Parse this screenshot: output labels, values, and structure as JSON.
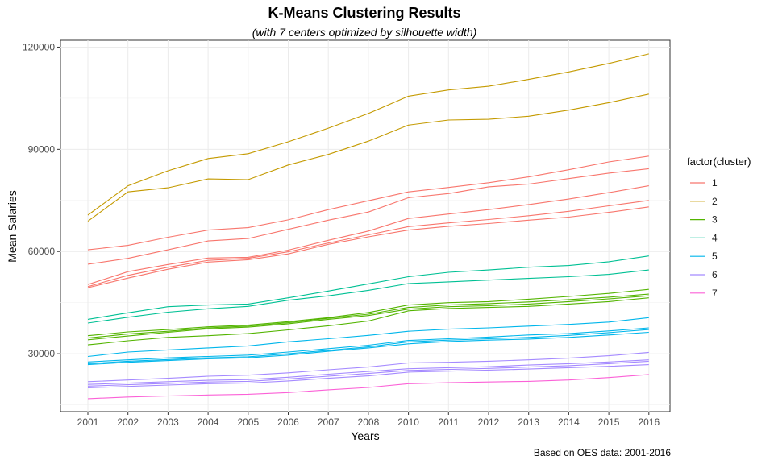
{
  "chart_data": {
    "type": "line",
    "title": "K-Means Clustering Results",
    "subtitle": "(with 7 centers optimized by silhouette width)",
    "xlabel": "Years",
    "ylabel": "Mean Salaries",
    "caption": "Based on OES data: 2001-2016",
    "x": [
      2001,
      2002,
      2003,
      2004,
      2005,
      2006,
      2007,
      2008,
      2010,
      2011,
      2012,
      2013,
      2014,
      2015,
      2016
    ],
    "x_ticks": [
      "2001",
      "2002",
      "2003",
      "2004",
      "2005",
      "2006",
      "2007",
      "2008",
      "2010",
      "2011",
      "2012",
      "2013",
      "2014",
      "2015",
      "2016"
    ],
    "y_ticks": [
      30000,
      60000,
      90000,
      120000
    ],
    "y_tick_labels": [
      "30000",
      "60000",
      "90000",
      "120000"
    ],
    "ylim": [
      13000,
      122000
    ],
    "grid": true,
    "legend": {
      "title": "factor(cluster)",
      "position": "right",
      "entries": [
        {
          "label": "1",
          "color": "#F8766D"
        },
        {
          "label": "2",
          "color": "#C49A00"
        },
        {
          "label": "3",
          "color": "#53B400"
        },
        {
          "label": "4",
          "color": "#00C094"
        },
        {
          "label": "5",
          "color": "#00B6EB"
        },
        {
          "label": "6",
          "color": "#A58AFF"
        },
        {
          "label": "7",
          "color": "#FB61D7"
        }
      ]
    },
    "series": [
      {
        "cluster": "1",
        "values": [
          60500,
          61800,
          64200,
          66300,
          67000,
          69300,
          72300,
          74900,
          77500,
          78800,
          80200,
          81900,
          84000,
          86300,
          88000
        ]
      },
      {
        "cluster": "1",
        "values": [
          56300,
          58000,
          60500,
          63100,
          63800,
          66500,
          69200,
          71600,
          75800,
          77000,
          79000,
          79800,
          81400,
          83000,
          84300
        ]
      },
      {
        "cluster": "1",
        "values": [
          50300,
          54100,
          56200,
          58100,
          58300,
          60400,
          63300,
          66000,
          69700,
          71000,
          72300,
          73800,
          75400,
          77300,
          79300
        ]
      },
      {
        "cluster": "1",
        "values": [
          49700,
          53000,
          55400,
          57400,
          58000,
          59900,
          62500,
          64900,
          67300,
          68400,
          69400,
          70500,
          71800,
          73400,
          75000
        ]
      },
      {
        "cluster": "1",
        "values": [
          49400,
          52200,
          54800,
          56900,
          57600,
          59300,
          62100,
          64300,
          66300,
          67400,
          68200,
          69200,
          70100,
          71500,
          73100
        ]
      },
      {
        "cluster": "2",
        "values": [
          70700,
          79300,
          83700,
          87300,
          88700,
          92200,
          96200,
          100500,
          105600,
          107400,
          108500,
          110500,
          112700,
          115200,
          118000
        ]
      },
      {
        "cluster": "2",
        "values": [
          68900,
          77500,
          78700,
          81300,
          81100,
          85400,
          88500,
          92400,
          97100,
          98600,
          98800,
          99700,
          101500,
          103700,
          106200
        ]
      },
      {
        "cluster": "3",
        "values": [
          35300,
          36400,
          37100,
          37900,
          38400,
          39400,
          40600,
          42100,
          44300,
          45000,
          45300,
          46000,
          46800,
          47700,
          48900
        ]
      },
      {
        "cluster": "3",
        "values": [
          34600,
          35800,
          36600,
          37600,
          38100,
          39100,
          40400,
          41600,
          43600,
          44300,
          44700,
          45200,
          45900,
          46600,
          47500
        ]
      },
      {
        "cluster": "3",
        "values": [
          34100,
          35200,
          36300,
          37300,
          37800,
          38800,
          40100,
          41200,
          43100,
          43800,
          44100,
          44600,
          45300,
          46100,
          47000
        ]
      },
      {
        "cluster": "3",
        "values": [
          32600,
          33800,
          34800,
          35300,
          35900,
          37000,
          38200,
          39600,
          42600,
          43300,
          43600,
          43900,
          44600,
          45300,
          46400
        ]
      },
      {
        "cluster": "4",
        "values": [
          40100,
          42000,
          43800,
          44300,
          44600,
          46400,
          48400,
          50500,
          52600,
          53900,
          54600,
          55400,
          55900,
          57000,
          58700
        ]
      },
      {
        "cluster": "4",
        "values": [
          39000,
          40700,
          42200,
          43200,
          43900,
          45700,
          47000,
          48600,
          50600,
          51100,
          51600,
          52100,
          52600,
          53300,
          54600
        ]
      },
      {
        "cluster": "5",
        "values": [
          29200,
          30500,
          31100,
          31700,
          32300,
          33500,
          34400,
          35400,
          36600,
          37200,
          37600,
          38100,
          38600,
          39300,
          40600
        ]
      },
      {
        "cluster": "5",
        "values": [
          27600,
          28200,
          28800,
          29200,
          29600,
          30500,
          31500,
          32500,
          33900,
          34400,
          34900,
          35500,
          35900,
          36700,
          37600
        ]
      },
      {
        "cluster": "5",
        "values": [
          27100,
          27800,
          28300,
          28800,
          29100,
          30000,
          31000,
          32000,
          33500,
          34000,
          34400,
          34800,
          35400,
          36200,
          37100
        ]
      },
      {
        "cluster": "5",
        "values": [
          26800,
          27500,
          28000,
          28500,
          28800,
          29600,
          30700,
          31700,
          32900,
          33600,
          34000,
          34300,
          34800,
          35500,
          36300
        ]
      },
      {
        "cluster": "6",
        "values": [
          21800,
          22300,
          22800,
          23400,
          23700,
          24400,
          25300,
          26100,
          27300,
          27500,
          27800,
          28200,
          28700,
          29400,
          30400
        ]
      },
      {
        "cluster": "6",
        "values": [
          21000,
          21400,
          21800,
          22200,
          22400,
          23100,
          24000,
          24800,
          25600,
          25900,
          26200,
          26700,
          27100,
          27600,
          28200
        ]
      },
      {
        "cluster": "6",
        "values": [
          20500,
          20900,
          21300,
          21700,
          21900,
          22600,
          23400,
          24200,
          25100,
          25400,
          25700,
          26100,
          26500,
          27100,
          27800
        ]
      },
      {
        "cluster": "6",
        "values": [
          20000,
          20400,
          20800,
          21200,
          21400,
          22000,
          22800,
          23500,
          24600,
          24900,
          25200,
          25500,
          25900,
          26300,
          26800
        ]
      },
      {
        "cluster": "7",
        "values": [
          16800,
          17300,
          17600,
          17900,
          18100,
          18600,
          19400,
          20100,
          21200,
          21500,
          21700,
          21900,
          22300,
          23000,
          23900
        ]
      }
    ]
  }
}
